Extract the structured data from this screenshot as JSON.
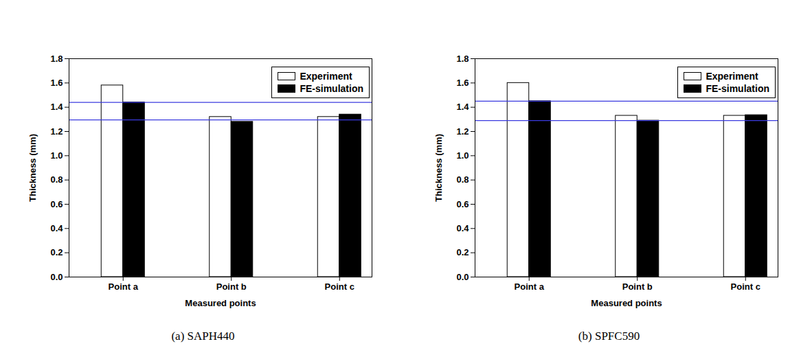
{
  "chart_data": [
    {
      "type": "bar",
      "title": "(a) SAPH440",
      "categories": [
        "Point a",
        "Point b",
        "Point c"
      ],
      "series": [
        {
          "name": "Experiment",
          "color": "white",
          "values": [
            1.58,
            1.32,
            1.32
          ]
        },
        {
          "name": "FE-simulation",
          "color": "black",
          "values": [
            1.44,
            1.28,
            1.34
          ]
        }
      ],
      "hlines": [
        1.44,
        1.295
      ],
      "xlabel": "Measured points",
      "ylabel": "Thickness (mm)",
      "ylim": [
        0,
        1.8
      ],
      "yticks": [
        {
          "value": 0,
          "label": "0.0"
        },
        0.2,
        0.4,
        0.6,
        0.8,
        {
          "value": 1,
          "label": "1.0"
        },
        1.2,
        1.4,
        1.6,
        1.8
      ],
      "legend": "upper right",
      "grid": false
    },
    {
      "type": "bar",
      "title": "(b) SPFC590",
      "categories": [
        "Point a",
        "Point b",
        "Point c"
      ],
      "series": [
        {
          "name": "Experiment",
          "color": "white",
          "values": [
            1.6,
            1.33,
            1.33
          ]
        },
        {
          "name": "FE-simulation",
          "color": "black",
          "values": [
            1.45,
            1.29,
            1.335
          ]
        }
      ],
      "hlines": [
        1.45,
        1.29
      ],
      "xlabel": "Measured points",
      "ylabel": "Thickness (mm)",
      "ylim": [
        0,
        1.8
      ],
      "yticks": [
        {
          "value": 0,
          "label": "0.0"
        },
        0.2,
        0.4,
        0.6,
        0.8,
        {
          "value": 1,
          "label": "1.0"
        },
        1.2,
        1.4,
        1.6,
        1.8
      ],
      "legend": "upper right",
      "grid": false
    }
  ]
}
